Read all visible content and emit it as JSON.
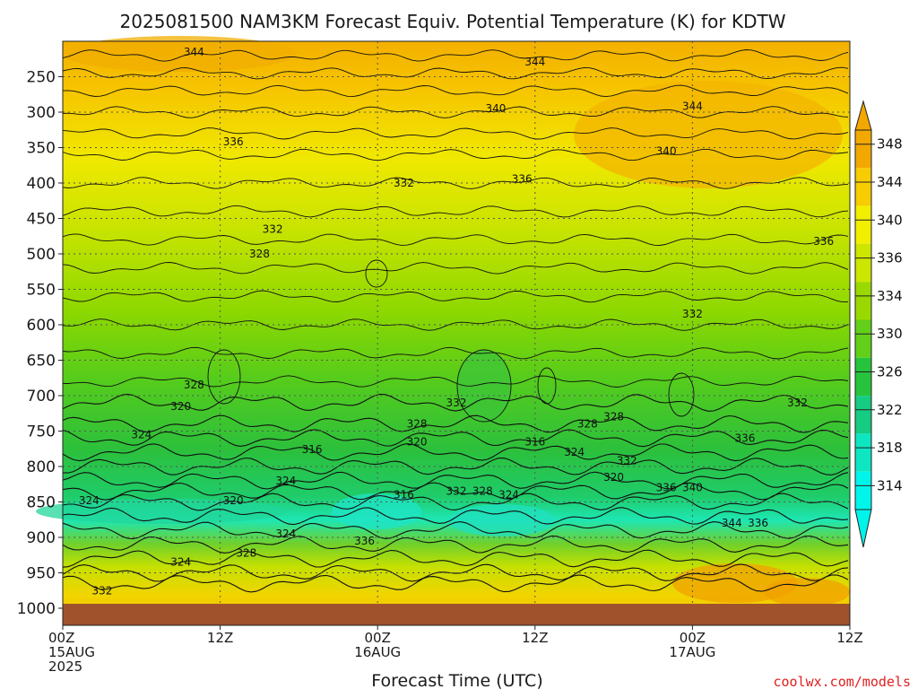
{
  "chart_data": {
    "type": "heatmap",
    "title": "2025081500 NAM3KM Forecast Equiv. Potential Temperature (K) for KDTW",
    "xlabel": "Forecast Time (UTC)",
    "ylabel": "",
    "y_ticks": [
      "250",
      "300",
      "350",
      "400",
      "450",
      "500",
      "550",
      "600",
      "650",
      "700",
      "750",
      "800",
      "850",
      "900",
      "950",
      "1000"
    ],
    "y_range_hpa": [
      200,
      1000
    ],
    "x_range_hours": [
      0,
      60
    ],
    "x_ticks": [
      {
        "hour": 0,
        "lines": [
          "00Z",
          "15AUG",
          "2025"
        ]
      },
      {
        "hour": 12,
        "lines": [
          "12Z"
        ]
      },
      {
        "hour": 24,
        "lines": [
          "00Z",
          "16AUG"
        ]
      },
      {
        "hour": 36,
        "lines": [
          "12Z"
        ]
      },
      {
        "hour": 48,
        "lines": [
          "00Z",
          "17AUG"
        ]
      },
      {
        "hour": 60,
        "lines": [
          "12Z"
        ]
      }
    ],
    "colorbar": {
      "labels": [
        "348",
        "344",
        "340",
        "336",
        "334",
        "330",
        "326",
        "322",
        "318",
        "314"
      ],
      "colors": [
        "#f2a800",
        "#f7cc00",
        "#f2ee00",
        "#cde600",
        "#99d900",
        "#62cf18",
        "#26c43c",
        "#16cc82",
        "#0ee6c2",
        "#00f5ea"
      ]
    },
    "colors": {
      "ground": "#a0522d",
      "contour": "#111111",
      "grid": "#555555"
    },
    "contour_labels": [
      {
        "text": "344",
        "hour": 10,
        "p": 215
      },
      {
        "text": "344",
        "hour": 36,
        "p": 229
      },
      {
        "text": "340",
        "hour": 33,
        "p": 295
      },
      {
        "text": "344",
        "hour": 48,
        "p": 292
      },
      {
        "text": "336",
        "hour": 13,
        "p": 342
      },
      {
        "text": "340",
        "hour": 46,
        "p": 355
      },
      {
        "text": "336",
        "hour": 35,
        "p": 394
      },
      {
        "text": "332",
        "hour": 26,
        "p": 400
      },
      {
        "text": "332",
        "hour": 16,
        "p": 465
      },
      {
        "text": "328",
        "hour": 15,
        "p": 500
      },
      {
        "text": "336",
        "hour": 58,
        "p": 482
      },
      {
        "text": "332",
        "hour": 48,
        "p": 585
      },
      {
        "text": "328",
        "hour": 10,
        "p": 685
      },
      {
        "text": "320",
        "hour": 9,
        "p": 715
      },
      {
        "text": "332",
        "hour": 30,
        "p": 710
      },
      {
        "text": "332",
        "hour": 56,
        "p": 710
      },
      {
        "text": "328",
        "hour": 27,
        "p": 740
      },
      {
        "text": "328",
        "hour": 40,
        "p": 740
      },
      {
        "text": "328",
        "hour": 42,
        "p": 730
      },
      {
        "text": "324",
        "hour": 6,
        "p": 755
      },
      {
        "text": "320",
        "hour": 27,
        "p": 765
      },
      {
        "text": "316",
        "hour": 19,
        "p": 776
      },
      {
        "text": "316",
        "hour": 36,
        "p": 765
      },
      {
        "text": "336",
        "hour": 52,
        "p": 760
      },
      {
        "text": "324",
        "hour": 39,
        "p": 780
      },
      {
        "text": "332",
        "hour": 43,
        "p": 792
      },
      {
        "text": "324",
        "hour": 17,
        "p": 820
      },
      {
        "text": "320",
        "hour": 42,
        "p": 815
      },
      {
        "text": "336",
        "hour": 46,
        "p": 830
      },
      {
        "text": "340",
        "hour": 48,
        "p": 830
      },
      {
        "text": "316",
        "hour": 26,
        "p": 840
      },
      {
        "text": "332",
        "hour": 30,
        "p": 835
      },
      {
        "text": "328",
        "hour": 32,
        "p": 835
      },
      {
        "text": "324",
        "hour": 34,
        "p": 840
      },
      {
        "text": "324",
        "hour": 2,
        "p": 848
      },
      {
        "text": "320",
        "hour": 13,
        "p": 848
      },
      {
        "text": "344",
        "hour": 51,
        "p": 880
      },
      {
        "text": "336",
        "hour": 53,
        "p": 880
      },
      {
        "text": "324",
        "hour": 17,
        "p": 895
      },
      {
        "text": "336",
        "hour": 23,
        "p": 905
      },
      {
        "text": "328",
        "hour": 14,
        "p": 922
      },
      {
        "text": "324",
        "hour": 9,
        "p": 935
      },
      {
        "text": "332",
        "hour": 3,
        "p": 975
      }
    ]
  },
  "credit": "coolwx.com/models"
}
